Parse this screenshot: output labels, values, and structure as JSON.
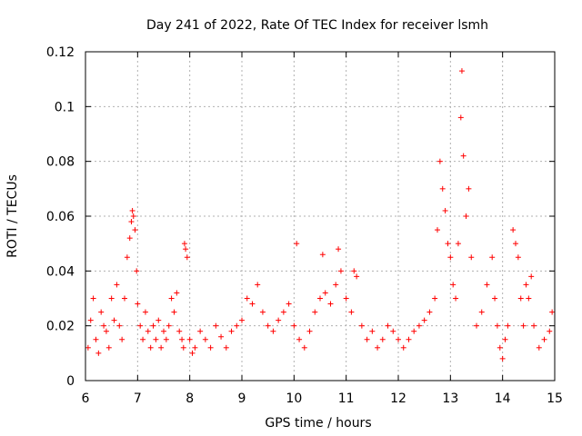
{
  "chart_data": {
    "type": "scatter",
    "title": "Day 241 of 2022, Rate Of TEC Index for receiver lsmh",
    "xlabel": "GPS time / hours",
    "ylabel": "ROTI / TECUs",
    "xlim": [
      6,
      15
    ],
    "ylim": [
      0,
      0.12
    ],
    "xticks": [
      "6",
      "7",
      "8",
      "9",
      "10",
      "11",
      "12",
      "13",
      "14",
      "15"
    ],
    "yticks": [
      "0",
      "0.02",
      "0.04",
      "0.06",
      "0.08",
      "0.1",
      "0.12"
    ],
    "grid": true,
    "marker": "+",
    "color": "#ff0000",
    "series": [
      {
        "x": [
          6.05,
          6.1,
          6.15,
          6.2,
          6.25,
          6.3,
          6.35,
          6.4,
          6.45,
          6.5,
          6.55,
          6.6,
          6.65,
          6.7,
          6.75,
          6.8,
          6.85,
          6.88,
          6.9,
          6.92,
          6.95,
          6.98,
          7.0,
          7.05,
          7.1,
          7.15,
          7.2,
          7.25,
          7.3,
          7.35,
          7.4,
          7.45,
          7.5,
          7.55,
          7.6,
          7.65,
          7.7,
          7.75,
          7.8,
          7.85,
          7.88,
          7.9,
          7.92,
          7.95,
          8.0,
          8.05,
          8.1,
          8.2,
          8.3,
          8.4,
          8.5,
          8.6,
          8.7,
          8.8,
          8.9,
          9.0,
          9.1,
          9.2,
          9.3,
          9.4,
          9.5,
          9.6,
          9.7,
          9.8,
          9.9,
          10.0,
          10.05,
          10.1,
          10.2,
          10.3,
          10.4,
          10.5,
          10.55,
          10.6,
          10.7,
          10.8,
          10.85,
          10.9,
          11.0,
          11.1,
          11.15,
          11.2,
          11.3,
          11.4,
          11.5,
          11.6,
          11.7,
          11.8,
          11.9,
          12.0,
          12.1,
          12.2,
          12.3,
          12.4,
          12.5,
          12.6,
          12.7,
          12.75,
          12.8,
          12.85,
          12.9,
          12.95,
          13.0,
          13.05,
          13.1,
          13.15,
          13.2,
          13.22,
          13.25,
          13.3,
          13.35,
          13.4,
          13.5,
          13.6,
          13.7,
          13.8,
          13.85,
          13.9,
          13.95,
          14.0,
          14.05,
          14.1,
          14.2,
          14.25,
          14.3,
          14.35,
          14.4,
          14.45,
          14.5,
          14.55,
          14.6,
          14.7,
          14.8,
          14.9,
          14.95
        ],
        "y": [
          0.012,
          0.022,
          0.03,
          0.015,
          0.01,
          0.025,
          0.02,
          0.018,
          0.012,
          0.03,
          0.022,
          0.035,
          0.02,
          0.015,
          0.03,
          0.045,
          0.052,
          0.058,
          0.062,
          0.06,
          0.055,
          0.04,
          0.028,
          0.02,
          0.015,
          0.025,
          0.018,
          0.012,
          0.02,
          0.015,
          0.022,
          0.012,
          0.018,
          0.015,
          0.02,
          0.03,
          0.025,
          0.032,
          0.018,
          0.015,
          0.012,
          0.05,
          0.048,
          0.045,
          0.015,
          0.01,
          0.012,
          0.018,
          0.015,
          0.012,
          0.02,
          0.016,
          0.012,
          0.018,
          0.02,
          0.022,
          0.03,
          0.028,
          0.035,
          0.025,
          0.02,
          0.018,
          0.022,
          0.025,
          0.028,
          0.02,
          0.05,
          0.015,
          0.012,
          0.018,
          0.025,
          0.03,
          0.046,
          0.032,
          0.028,
          0.035,
          0.048,
          0.04,
          0.03,
          0.025,
          0.04,
          0.038,
          0.02,
          0.015,
          0.018,
          0.012,
          0.015,
          0.02,
          0.018,
          0.015,
          0.012,
          0.015,
          0.018,
          0.02,
          0.022,
          0.025,
          0.03,
          0.055,
          0.08,
          0.07,
          0.062,
          0.05,
          0.045,
          0.035,
          0.03,
          0.05,
          0.096,
          0.113,
          0.082,
          0.06,
          0.07,
          0.045,
          0.02,
          0.025,
          0.035,
          0.045,
          0.03,
          0.02,
          0.012,
          0.008,
          0.015,
          0.02,
          0.055,
          0.05,
          0.045,
          0.03,
          0.02,
          0.035,
          0.03,
          0.038,
          0.02,
          0.012,
          0.015,
          0.018,
          0.025
        ]
      }
    ]
  }
}
